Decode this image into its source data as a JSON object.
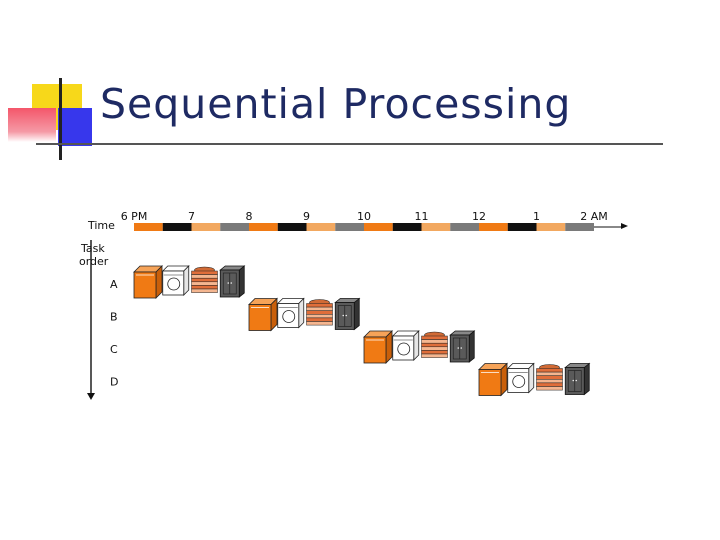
{
  "title": "Sequential Processing",
  "diagram": {
    "time_label": "Time",
    "task_order_label_line1": "Task",
    "task_order_label_line2": "order",
    "time_ticks": [
      "6 PM",
      "7",
      "8",
      "9",
      "10",
      "11",
      "12",
      "1",
      "2 AM"
    ],
    "tasks": [
      "A",
      "B",
      "C",
      "D"
    ],
    "stages": [
      "washer",
      "dryer",
      "folding",
      "closet"
    ],
    "stage_colors": [
      "#f07a14",
      "#ffffff",
      "#e68a55",
      "#555555"
    ],
    "timeline_colors": [
      "#f07a14",
      "#111111",
      "#f2a860",
      "#7a7a7a"
    ],
    "hours_per_task": 2,
    "stages_per_hour": 2
  }
}
